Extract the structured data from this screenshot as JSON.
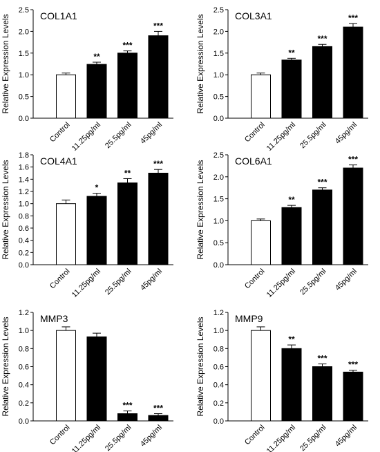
{
  "chart_data": [
    {
      "type": "bar",
      "title": "COL1A1",
      "ylabel": "Relative Expression Levels",
      "categories": [
        "Control",
        "11.25pg/ml",
        "25.5pg/ml",
        "45pg/ml"
      ],
      "values": [
        1.0,
        1.24,
        1.5,
        1.9
      ],
      "errors": [
        0.04,
        0.05,
        0.05,
        0.1
      ],
      "significance": [
        "",
        "**",
        "***",
        "***"
      ],
      "ylim": [
        0,
        2.5
      ],
      "yticks": [
        "0.0",
        "0.5",
        "1.0",
        "1.5",
        "2.0",
        "2.5"
      ],
      "fill": [
        "#ffffff",
        "#000000",
        "#000000",
        "#000000"
      ]
    },
    {
      "type": "bar",
      "title": "COL3A1",
      "ylabel": "Relative Expression Levels",
      "categories": [
        "Control",
        "11.25pg/ml",
        "25.5pg/ml",
        "45pg/ml"
      ],
      "values": [
        1.0,
        1.34,
        1.65,
        2.1
      ],
      "errors": [
        0.04,
        0.04,
        0.05,
        0.08
      ],
      "significance": [
        "",
        "**",
        "***",
        "***"
      ],
      "ylim": [
        0,
        2.5
      ],
      "yticks": [
        "0.0",
        "0.5",
        "1.0",
        "1.5",
        "2.0",
        "2.5"
      ],
      "fill": [
        "#ffffff",
        "#000000",
        "#000000",
        "#000000"
      ]
    },
    {
      "type": "bar",
      "title": "COL4A1",
      "ylabel": "Relative Expression Levels",
      "categories": [
        "Control",
        "11.25pg/ml",
        "25.5pg/ml",
        "45pg/ml"
      ],
      "values": [
        1.0,
        1.12,
        1.34,
        1.5
      ],
      "errors": [
        0.06,
        0.05,
        0.07,
        0.06
      ],
      "significance": [
        "",
        "*",
        "**",
        "***"
      ],
      "ylim": [
        0,
        1.8
      ],
      "yticks": [
        "0.0",
        "0.2",
        "0.4",
        "0.6",
        "0.8",
        "1.0",
        "1.2",
        "1.4",
        "1.6",
        "1.8"
      ],
      "fill": [
        "#ffffff",
        "#000000",
        "#000000",
        "#000000"
      ]
    },
    {
      "type": "bar",
      "title": "COL6A1",
      "ylabel": "Relative Expression Levels",
      "categories": [
        "Control",
        "11.25pg/ml",
        "25.5pg/ml",
        "45pg/ml"
      ],
      "values": [
        1.0,
        1.3,
        1.7,
        2.2
      ],
      "errors": [
        0.04,
        0.05,
        0.05,
        0.07
      ],
      "significance": [
        "",
        "**",
        "***",
        "***"
      ],
      "ylim": [
        0,
        2.5
      ],
      "yticks": [
        "0.0",
        "0.5",
        "1.0",
        "1.5",
        "2.0",
        "2.5"
      ],
      "fill": [
        "#ffffff",
        "#000000",
        "#000000",
        "#000000"
      ]
    },
    {
      "type": "bar",
      "title": "MMP3",
      "ylabel": "Relative Expression Levels",
      "categories": [
        "Control",
        "11.25pg/ml",
        "25.5pg/ml",
        "45pg/ml"
      ],
      "values": [
        1.0,
        0.93,
        0.08,
        0.06
      ],
      "errors": [
        0.04,
        0.04,
        0.03,
        0.02
      ],
      "significance": [
        "",
        "",
        "***",
        "***"
      ],
      "ylim": [
        0,
        1.2
      ],
      "yticks": [
        "0.0",
        "0.2",
        "0.4",
        "0.6",
        "0.8",
        "1.0",
        "1.2"
      ],
      "fill": [
        "#ffffff",
        "#000000",
        "#000000",
        "#000000"
      ]
    },
    {
      "type": "bar",
      "title": "MMP9",
      "ylabel": "Relative Expression Levels",
      "categories": [
        "Control",
        "11.25pg/ml",
        "25.5pg/ml",
        "45pg/ml"
      ],
      "values": [
        1.0,
        0.8,
        0.6,
        0.54
      ],
      "errors": [
        0.04,
        0.04,
        0.03,
        0.02
      ],
      "significance": [
        "",
        "**",
        "***",
        "***"
      ],
      "ylim": [
        0,
        1.2
      ],
      "yticks": [
        "0.0",
        "0.2",
        "0.4",
        "0.6",
        "0.8",
        "1.0",
        "1.2"
      ],
      "fill": [
        "#ffffff",
        "#000000",
        "#000000",
        "#000000"
      ]
    }
  ]
}
